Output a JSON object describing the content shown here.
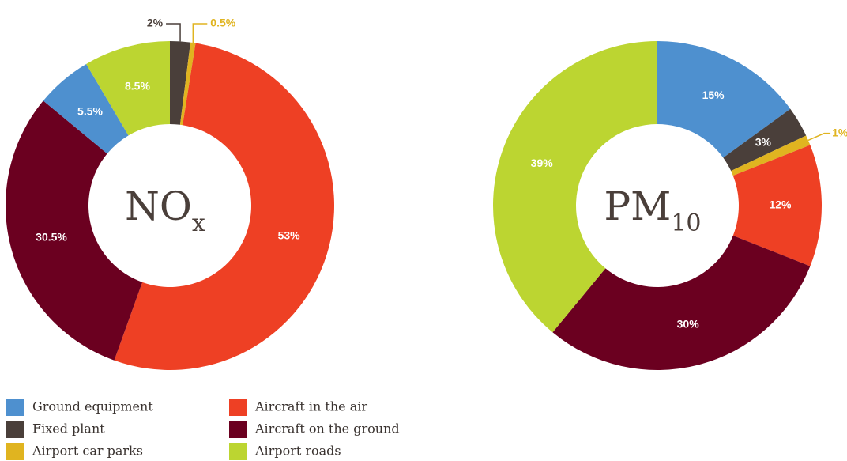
{
  "chart_data": [
    {
      "type": "donut",
      "title": "NO",
      "title_subscript": "x",
      "categories": [
        "Fixed plant",
        "Airport car parks",
        "Aircraft in the air",
        "Aircraft on the ground",
        "Ground equipment",
        "Airport roads"
      ],
      "values": [
        2,
        0.5,
        53,
        30.5,
        5.5,
        8.5
      ],
      "value_labels": [
        "2%",
        "0.5%",
        "53%",
        "30.5%",
        "5.5%",
        "8.5%"
      ]
    },
    {
      "type": "donut",
      "title": "PM",
      "title_subscript": "10",
      "categories": [
        "Ground equipment",
        "Fixed plant",
        "Airport car parks",
        "Aircraft in the air",
        "Aircraft on the ground",
        "Airport roads"
      ],
      "values": [
        15,
        3,
        1,
        12,
        30,
        39
      ],
      "value_labels": [
        "15%",
        "3%",
        "1%",
        "12%",
        "30%",
        "39%"
      ]
    }
  ],
  "legend": [
    {
      "name": "Ground equipment",
      "color": "#4e90cf"
    },
    {
      "name": "Fixed plant",
      "color": "#4a3f3a"
    },
    {
      "name": "Airport car parks",
      "color": "#e0b420"
    },
    {
      "name": "Aircraft in the air",
      "color": "#ee4024"
    },
    {
      "name": "Aircraft on the ground",
      "color": "#6b0020"
    },
    {
      "name": "Airport roads",
      "color": "#bcd531"
    }
  ]
}
